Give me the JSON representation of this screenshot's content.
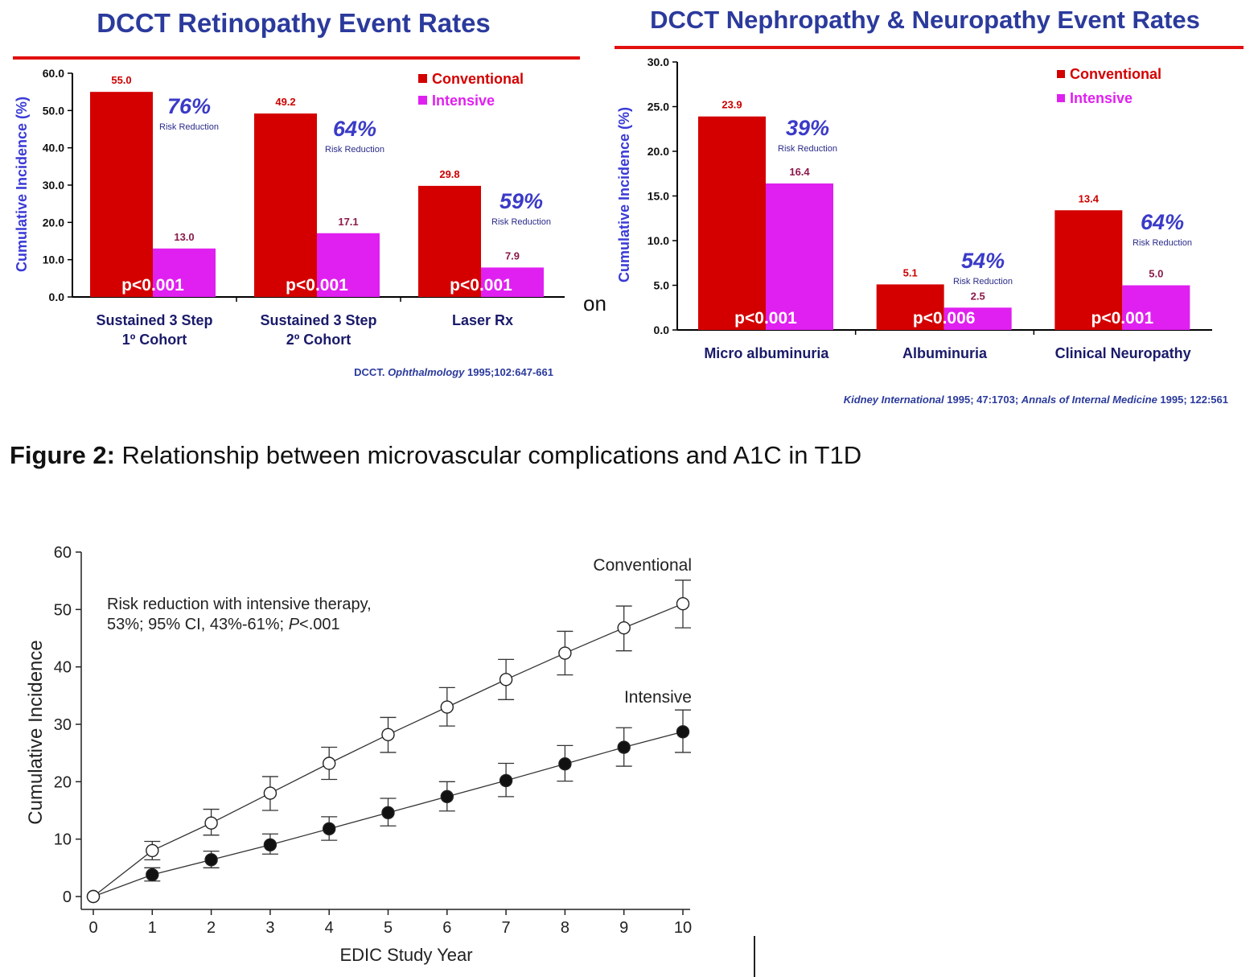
{
  "figure_caption": {
    "label": "Figure 2:",
    "text": "Relationship between microvascular complications and A1C in T1D"
  },
  "stray_text": "on",
  "colors": {
    "conventional": "#d40000",
    "intensive": "#e020f0",
    "title": "#2b3a9c",
    "axis_label": "#3a3ad6",
    "rule": "#e21010",
    "annot": "#3a3ac8",
    "value_conv": "#cc0000",
    "value_int": "#8a1a4a"
  },
  "chart_data": [
    {
      "type": "bar",
      "title": "DCCT Retinopathy Event Rates",
      "ylabel": "Cumulative Incidence (%)",
      "ylim": [
        0,
        60
      ],
      "yticks": [
        "0.0",
        "10.0",
        "20.0",
        "30.0",
        "40.0",
        "50.0",
        "60.0"
      ],
      "categories": [
        [
          "Sustained 3 Step",
          "1º Cohort"
        ],
        [
          "Sustained 3 Step",
          "2º Cohort"
        ],
        [
          "Laser Rx"
        ]
      ],
      "series": [
        {
          "name": "Conventional",
          "values": [
            55.0,
            49.2,
            29.8
          ],
          "labels": [
            "55.0",
            "49.2",
            "29.8"
          ]
        },
        {
          "name": "Intensive",
          "values": [
            13.0,
            17.1,
            7.9
          ],
          "labels": [
            "13.0",
            "17.1",
            "7.9"
          ]
        }
      ],
      "risk_reduction": [
        "76%",
        "64%",
        "59%"
      ],
      "risk_reduction_label": "Risk Reduction",
      "pvalues": [
        "p<0.001",
        "p<0.001",
        "p<0.001"
      ],
      "legend_position": "top-right",
      "citation": {
        "prefix": "DCCT.",
        "journal": "Ophthalmology",
        "rest": " 1995;102:647-661"
      }
    },
    {
      "type": "bar",
      "title": "DCCT Nephropathy & Neuropathy Event Rates",
      "ylabel": "Cumulative Incidence (%)",
      "ylim": [
        0,
        30
      ],
      "yticks": [
        "0.0",
        "5.0",
        "10.0",
        "15.0",
        "20.0",
        "25.0",
        "30.0"
      ],
      "categories": [
        [
          "Micro albuminuria"
        ],
        [
          "Albuminuria"
        ],
        [
          "Clinical Neuropathy"
        ]
      ],
      "series": [
        {
          "name": "Conventional",
          "values": [
            23.9,
            5.1,
            13.4
          ],
          "labels": [
            "23.9",
            "5.1",
            "13.4"
          ]
        },
        {
          "name": "Intensive",
          "values": [
            16.4,
            2.5,
            5.0
          ],
          "labels": [
            "16.4",
            "2.5",
            "5.0"
          ]
        }
      ],
      "risk_reduction": [
        "39%",
        "54%",
        "64%"
      ],
      "risk_reduction_label": "Risk Reduction",
      "pvalues": [
        "p<0.001",
        "p<0.006",
        "p<0.001"
      ],
      "legend_position": "top-right",
      "citation": {
        "journal1": "Kidney International",
        "rest1": " 1995; 47:1703; ",
        "journal2": "Annals of Internal Medicine",
        "rest2": " 1995; 122:561"
      }
    },
    {
      "type": "line",
      "xlabel": "EDIC Study Year",
      "ylabel": "Cumulative Incidence",
      "xlim": [
        0,
        10
      ],
      "ylim": [
        0,
        60
      ],
      "xticks": [
        0,
        1,
        2,
        3,
        4,
        5,
        6,
        7,
        8,
        9,
        10
      ],
      "yticks": [
        0,
        10,
        20,
        30,
        40,
        50,
        60
      ],
      "annotation": {
        "line1": "Risk reduction with intensive therapy,",
        "line2a": "53%; 95% CI, 43%-61%; ",
        "line2_italic": "P",
        "line2b": "<.001"
      },
      "series": [
        {
          "name": "Conventional",
          "marker": "open-circle",
          "x": [
            0,
            1,
            2,
            3,
            4,
            5,
            6,
            7,
            8,
            9,
            10
          ],
          "y": [
            0,
            8.0,
            12.8,
            18.0,
            23.2,
            28.2,
            33.0,
            37.8,
            42.4,
            46.8,
            51.0
          ],
          "err_low": [
            0,
            6.4,
            10.7,
            15.0,
            20.4,
            25.1,
            29.7,
            34.3,
            38.6,
            42.8,
            46.8
          ],
          "err_high": [
            0,
            9.6,
            15.2,
            20.9,
            26.0,
            31.2,
            36.4,
            41.3,
            46.2,
            50.6,
            55.1
          ]
        },
        {
          "name": "Intensive",
          "marker": "filled-circle",
          "x": [
            0,
            1,
            2,
            3,
            4,
            5,
            6,
            7,
            8,
            9,
            10
          ],
          "y": [
            0,
            3.8,
            6.4,
            9.0,
            11.8,
            14.6,
            17.4,
            20.2,
            23.1,
            26.0,
            28.7
          ],
          "err_low": [
            0,
            2.7,
            5.0,
            7.4,
            9.8,
            12.3,
            14.9,
            17.4,
            20.1,
            22.7,
            25.1
          ],
          "err_high": [
            0,
            5.0,
            7.9,
            10.9,
            13.9,
            17.1,
            20.0,
            23.2,
            26.3,
            29.4,
            32.5
          ]
        }
      ]
    }
  ]
}
